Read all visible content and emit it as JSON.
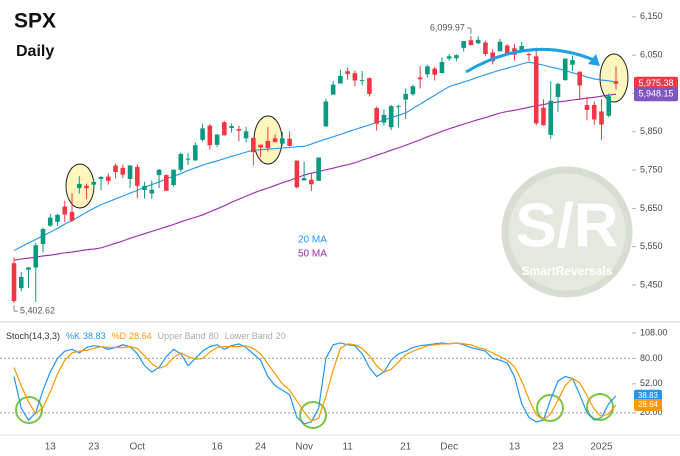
{
  "chart_data": [
    {
      "type": "candlestick",
      "title": "SPX",
      "subtitle": "Daily",
      "categories": [
        null,
        null,
        null,
        null,
        null,
        "13",
        null,
        null,
        null,
        null,
        null,
        "23",
        null,
        null,
        null,
        null,
        null,
        "Oct",
        null,
        null,
        null,
        null,
        null,
        null,
        null,
        null,
        null,
        null,
        "16",
        null,
        null,
        null,
        null,
        null,
        "24",
        null,
        null,
        null,
        null,
        null,
        "Nov",
        null,
        null,
        null,
        null,
        null,
        "11",
        null,
        null,
        null,
        null,
        null,
        null,
        null,
        "21",
        null,
        null,
        null,
        null,
        null,
        "Dec",
        null,
        null,
        null,
        null,
        null,
        null,
        null,
        null,
        "13",
        null,
        null,
        null,
        null,
        null,
        "23",
        null,
        null,
        null,
        null,
        null,
        "2025",
        null,
        null
      ],
      "open": [
        5507,
        5442,
        5490,
        5496,
        5557,
        5605,
        5615,
        5655,
        5641,
        5703,
        5709,
        5712,
        5727,
        5733,
        5762,
        5756,
        5727,
        5758,
        5698,
        5689,
        5737,
        5737,
        5711,
        5751,
        5778,
        5775,
        5829,
        5866,
        5816,
        5875,
        5860,
        5857,
        5833,
        5834,
        5816,
        5826,
        5833,
        5819,
        5832,
        5775,
        5723,
        5725,
        5722,
        5864,
        5947,
        5976,
        6008,
        6003,
        5985,
        5990,
        5912,
        5874,
        5862,
        5917,
        5934,
        5948,
        5992,
        6000,
        6015,
        6003,
        6041,
        6042,
        6069,
        6089,
        6081,
        6083,
        6057,
        6060,
        6075,
        6068,
        6063,
        6053,
        6047,
        5913,
        5842,
        5941,
        5985,
        6025,
        6007,
        5920,
        5920,
        5903,
        5892,
        5982
      ],
      "high": [
        5522,
        5484,
        5497,
        5560,
        5600,
        5636,
        5636,
        5670,
        5690,
        5734,
        5715,
        5725,
        5735,
        5741,
        5767,
        5764,
        5763,
        5765,
        5719,
        5723,
        5753,
        5739,
        5752,
        5796,
        5795,
        5822,
        5871,
        5870,
        5843,
        5878,
        5872,
        5866,
        5863,
        5834,
        5817,
        5862,
        5843,
        5850,
        5851,
        5775,
        5772,
        5741,
        5783,
        5936,
        5983,
        6012,
        6018,
        6010,
        6009,
        5992,
        5916,
        5909,
        5920,
        5920,
        5963,
        5973,
        6021,
        6025,
        6020,
        6044,
        6053,
        6052,
        6087,
        6099.97,
        6099,
        6088,
        6065,
        6092,
        6079,
        6079,
        6085,
        6057,
        6070,
        5935,
        5982,
        5978,
        6041,
        6049,
        6007,
        5941,
        5929,
        5935,
        5950,
        6021
      ],
      "low": [
        5402.62,
        5434,
        5442,
        5406,
        5535,
        5602,
        5604,
        5614,
        5615,
        5689,
        5674,
        5705,
        5698,
        5712,
        5728,
        5729,
        5703,
        5677,
        5676,
        5675,
        5703,
        5696,
        5707,
        5745,
        5764,
        5775,
        5825,
        5804,
        5810,
        5840,
        5848,
        5825,
        5822,
        5762,
        5784,
        5799,
        5823,
        5814,
        5811,
        5702,
        5723,
        5696,
        5722,
        5864,
        5947,
        5976,
        5986,
        5969,
        5971,
        5942,
        5853,
        5866,
        5854,
        5861,
        5883,
        5944,
        5963,
        5992,
        5984,
        6003,
        6035,
        6034,
        6060,
        6079,
        6079,
        6047,
        6026,
        6060,
        6051,
        6036,
        6059,
        6035,
        5867,
        5866,
        5832,
        5902,
        5983,
        6008,
        5933,
        5880,
        5868,
        5829,
        5888,
        5960
      ],
      "close": [
        5408,
        5471,
        5496,
        5554,
        5596,
        5626,
        5633,
        5634,
        5618,
        5714,
        5703,
        5719,
        5732,
        5722,
        5745,
        5738,
        5762,
        5709,
        5709,
        5699,
        5751,
        5696,
        5751,
        5792,
        5780,
        5815,
        5859,
        5815,
        5843,
        5841,
        5865,
        5853,
        5851,
        5797,
        5809,
        5808,
        5823,
        5833,
        5813,
        5705,
        5729,
        5713,
        5783,
        5929,
        5973,
        5996,
        6001,
        5984,
        5985,
        5949,
        5871,
        5894,
        5917,
        5917,
        5949,
        5969,
        5987,
        6021,
        5999,
        6032,
        6047,
        6050,
        6087,
        6076,
        6090,
        6053,
        6034,
        6085,
        6051,
        6051,
        6074,
        6050,
        5872,
        5867,
        5931,
        5975,
        6041,
        6037,
        5971,
        5907,
        5882,
        5869,
        5943,
        5975.38
      ],
      "up_color": "#089981",
      "down_color": "#f23645",
      "series": [
        {
          "name": "20 MA",
          "color": "#2196f3",
          "values": [
            5540,
            5550,
            5560,
            5569,
            5579,
            5588,
            5598,
            5609,
            5619,
            5629,
            5640,
            5650,
            5660,
            5667,
            5675,
            5682,
            5690,
            5697,
            5705,
            5712,
            5719,
            5727,
            5734,
            5741,
            5749,
            5756,
            5763,
            5769,
            5774,
            5780,
            5786,
            5791,
            5797,
            5802,
            5803,
            5805,
            5806,
            5808,
            5809,
            5811,
            5812,
            5818,
            5825,
            5831,
            5837,
            5843,
            5850,
            5856,
            5862,
            5868,
            5874,
            5881,
            5887,
            5893,
            5899,
            5911,
            5922,
            5934,
            5945,
            5957,
            5968,
            5974,
            5980,
            5986,
            5993,
            5999,
            6005,
            6011,
            6016,
            6021,
            6027,
            6032,
            6028,
            6024,
            6019,
            6015,
            6010,
            6004,
            5999,
            5993,
            5988,
            5985,
            5983,
            5980
          ]
        },
        {
          "name": "50 MA",
          "color": "#9c27b0",
          "values": [
            5515,
            5518,
            5520,
            5523,
            5526,
            5528,
            5531,
            5534,
            5536,
            5539,
            5542,
            5544,
            5547,
            5553,
            5559,
            5565,
            5572,
            5578,
            5584,
            5590,
            5596,
            5602,
            5608,
            5615,
            5621,
            5627,
            5633,
            5641,
            5649,
            5657,
            5666,
            5674,
            5682,
            5690,
            5697,
            5703,
            5710,
            5717,
            5723,
            5730,
            5737,
            5742,
            5746,
            5751,
            5755,
            5760,
            5764,
            5769,
            5776,
            5782,
            5789,
            5795,
            5802,
            5808,
            5815,
            5822,
            5829,
            5837,
            5844,
            5851,
            5858,
            5864,
            5870,
            5876,
            5882,
            5887,
            5893,
            5899,
            5903,
            5906,
            5910,
            5914,
            5918,
            5921,
            5925,
            5928,
            5930,
            5933,
            5935,
            5938,
            5940,
            5943,
            5946,
            5948.15
          ]
        }
      ],
      "ylim": [
        5364,
        6194
      ],
      "yticks": [
        {
          "value": 5450,
          "label": "5,450"
        },
        {
          "value": 5550,
          "label": "5,550"
        },
        {
          "value": 5650,
          "label": "5,650"
        },
        {
          "value": 5750,
          "label": "5,750"
        },
        {
          "value": 5850,
          "label": "5,850"
        },
        {
          "value": 5950,
          "label": "5,950"
        },
        {
          "value": 6050,
          "label": "6,050"
        },
        {
          "value": 6150,
          "label": "6,150"
        }
      ],
      "annotations": [
        {
          "value": 6099.97,
          "label": "6,099.97"
        },
        {
          "value": 5402.62,
          "label": "5,402.62"
        }
      ],
      "price_tags": [
        {
          "value": 5975.38,
          "label": "5,975.38",
          "color": "#f23645"
        },
        {
          "value": 5948.15,
          "label": "5,948.15",
          "color": "#7e57c2"
        }
      ],
      "watermark": {
        "title": "S/R",
        "subtitle": "SmartReversals"
      }
    },
    {
      "type": "line",
      "title": "Stoch(14,3,3)",
      "series": [
        {
          "name": "%K",
          "color": "#2196f3",
          "values": [
            60,
            25,
            12,
            20,
            45,
            65,
            80,
            88,
            90,
            86,
            92,
            94,
            93,
            90,
            92,
            95,
            93,
            85,
            72,
            65,
            70,
            82,
            90,
            85,
            72,
            80,
            88,
            93,
            95,
            90,
            94,
            96,
            92,
            85,
            78,
            60,
            50,
            45,
            40,
            15,
            8,
            10,
            25,
            80,
            95,
            97,
            95,
            94,
            85,
            70,
            60,
            65,
            78,
            85,
            88,
            92,
            94,
            95,
            96,
            97,
            96,
            97,
            95,
            92,
            90,
            88,
            80,
            78,
            75,
            60,
            30,
            15,
            10,
            12,
            35,
            55,
            60,
            58,
            40,
            20,
            12,
            15,
            30,
            38.83
          ]
        },
        {
          "name": "%D",
          "color": "#ff9800",
          "values": [
            70,
            50,
            32,
            19,
            26,
            43,
            63,
            78,
            86,
            88,
            89,
            91,
            93,
            92,
            92,
            92,
            93,
            91,
            83,
            74,
            69,
            72,
            81,
            86,
            82,
            79,
            80,
            87,
            92,
            93,
            93,
            93,
            94,
            91,
            85,
            74,
            63,
            52,
            45,
            33,
            21,
            11,
            14,
            38,
            67,
            91,
            96,
            95,
            91,
            83,
            72,
            65,
            68,
            76,
            84,
            88,
            91,
            94,
            95,
            96,
            96,
            97,
            96,
            95,
            92,
            90,
            86,
            82,
            78,
            71,
            55,
            35,
            18,
            12,
            19,
            34,
            50,
            58,
            53,
            39,
            24,
            16,
            19,
            28.64
          ]
        }
      ],
      "bands": [
        {
          "name": "Upper Band",
          "value": 80
        },
        {
          "name": "Lower Band",
          "value": 20
        }
      ],
      "ylim": [
        0,
        108
      ],
      "yticks": [
        {
          "value": 108,
          "label": "108.00"
        },
        {
          "value": 80,
          "label": "80.00"
        },
        {
          "value": 52,
          "label": "52.00"
        },
        {
          "value": 20,
          "label": "20.00"
        }
      ]
    }
  ]
}
